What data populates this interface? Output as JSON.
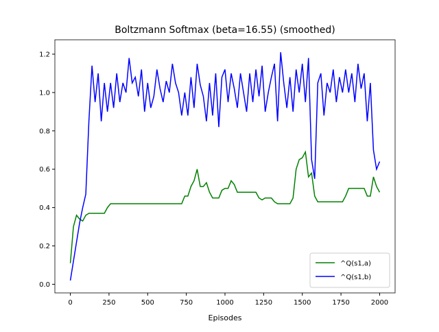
{
  "chart_data": {
    "type": "line",
    "title": "Boltzmann Softmax (beta=16.55) (smoothed)",
    "x_label": "Episodes",
    "x": [
      0,
      20,
      40,
      60,
      80,
      100,
      120,
      140,
      160,
      180,
      200,
      220,
      240,
      260,
      280,
      300,
      320,
      340,
      360,
      380,
      400,
      420,
      440,
      460,
      480,
      500,
      520,
      540,
      560,
      580,
      600,
      620,
      640,
      660,
      680,
      700,
      720,
      740,
      760,
      780,
      800,
      820,
      840,
      860,
      880,
      900,
      920,
      940,
      960,
      980,
      1000,
      1020,
      1040,
      1060,
      1080,
      1100,
      1120,
      1140,
      1160,
      1180,
      1200,
      1220,
      1240,
      1260,
      1280,
      1300,
      1320,
      1340,
      1360,
      1380,
      1400,
      1420,
      1440,
      1460,
      1480,
      1500,
      1520,
      1540,
      1560,
      1580,
      1600,
      1620,
      1640,
      1660,
      1680,
      1700,
      1720,
      1740,
      1760,
      1780,
      1800,
      1820,
      1840,
      1860,
      1880,
      1900,
      1920,
      1940,
      1960,
      1980,
      2000
    ],
    "series": [
      {
        "name": "^Q(s1,a)",
        "color": "#008000",
        "values": [
          0.11,
          0.3,
          0.36,
          0.34,
          0.33,
          0.36,
          0.37,
          0.37,
          0.37,
          0.37,
          0.37,
          0.37,
          0.4,
          0.42,
          0.42,
          0.42,
          0.42,
          0.42,
          0.42,
          0.42,
          0.42,
          0.42,
          0.42,
          0.42,
          0.42,
          0.42,
          0.42,
          0.42,
          0.42,
          0.42,
          0.42,
          0.42,
          0.42,
          0.42,
          0.42,
          0.42,
          0.42,
          0.46,
          0.46,
          0.51,
          0.54,
          0.6,
          0.51,
          0.51,
          0.53,
          0.48,
          0.45,
          0.45,
          0.45,
          0.49,
          0.5,
          0.5,
          0.54,
          0.52,
          0.48,
          0.48,
          0.48,
          0.48,
          0.48,
          0.48,
          0.48,
          0.45,
          0.44,
          0.45,
          0.45,
          0.45,
          0.43,
          0.42,
          0.42,
          0.42,
          0.42,
          0.42,
          0.45,
          0.6,
          0.65,
          0.66,
          0.69,
          0.56,
          0.58,
          0.46,
          0.43,
          0.43,
          0.43,
          0.43,
          0.43,
          0.43,
          0.43,
          0.43,
          0.43,
          0.46,
          0.5,
          0.5,
          0.5,
          0.5,
          0.5,
          0.5,
          0.46,
          0.46,
          0.56,
          0.51,
          0.48
        ]
      },
      {
        "name": "^Q(s1,b)",
        "color": "#0000ff",
        "values": [
          0.02,
          0.12,
          0.22,
          0.32,
          0.4,
          0.47,
          0.85,
          1.14,
          0.95,
          1.1,
          0.85,
          1.05,
          0.9,
          1.05,
          0.92,
          1.1,
          0.95,
          1.05,
          1.0,
          1.18,
          1.05,
          1.08,
          0.98,
          1.12,
          0.9,
          1.05,
          0.92,
          0.98,
          1.12,
          1.02,
          0.95,
          1.06,
          1.0,
          1.15,
          1.05,
          1.0,
          0.88,
          1.0,
          0.88,
          1.08,
          0.92,
          1.15,
          1.04,
          0.98,
          0.85,
          1.05,
          0.88,
          1.1,
          0.82,
          1.08,
          1.12,
          0.95,
          1.1,
          1.02,
          0.92,
          1.1,
          1.0,
          0.9,
          1.1,
          0.95,
          1.12,
          0.98,
          1.14,
          0.9,
          1.0,
          1.08,
          1.15,
          0.85,
          1.21,
          1.05,
          0.92,
          1.08,
          0.9,
          1.12,
          1.0,
          1.15,
          0.95,
          1.18,
          0.65,
          0.55,
          1.05,
          1.1,
          0.88,
          1.05,
          1.0,
          1.12,
          0.95,
          1.08,
          1.0,
          1.12,
          1.0,
          1.1,
          0.95,
          1.15,
          1.02,
          1.1,
          0.85,
          1.05,
          0.7,
          0.6,
          0.64
        ]
      }
    ],
    "xlim": [
      -100,
      2100
    ],
    "ylim": [
      -0.045,
      1.275
    ],
    "xticks": [
      0,
      250,
      500,
      750,
      1000,
      1250,
      1500,
      1750,
      2000
    ],
    "yticks": [
      {
        "value": 0,
        "label": "0.0"
      },
      0.2,
      0.4,
      0.6,
      0.8,
      {
        "value": 1,
        "label": "1.0"
      },
      1.2
    ],
    "legend": "lower right"
  }
}
